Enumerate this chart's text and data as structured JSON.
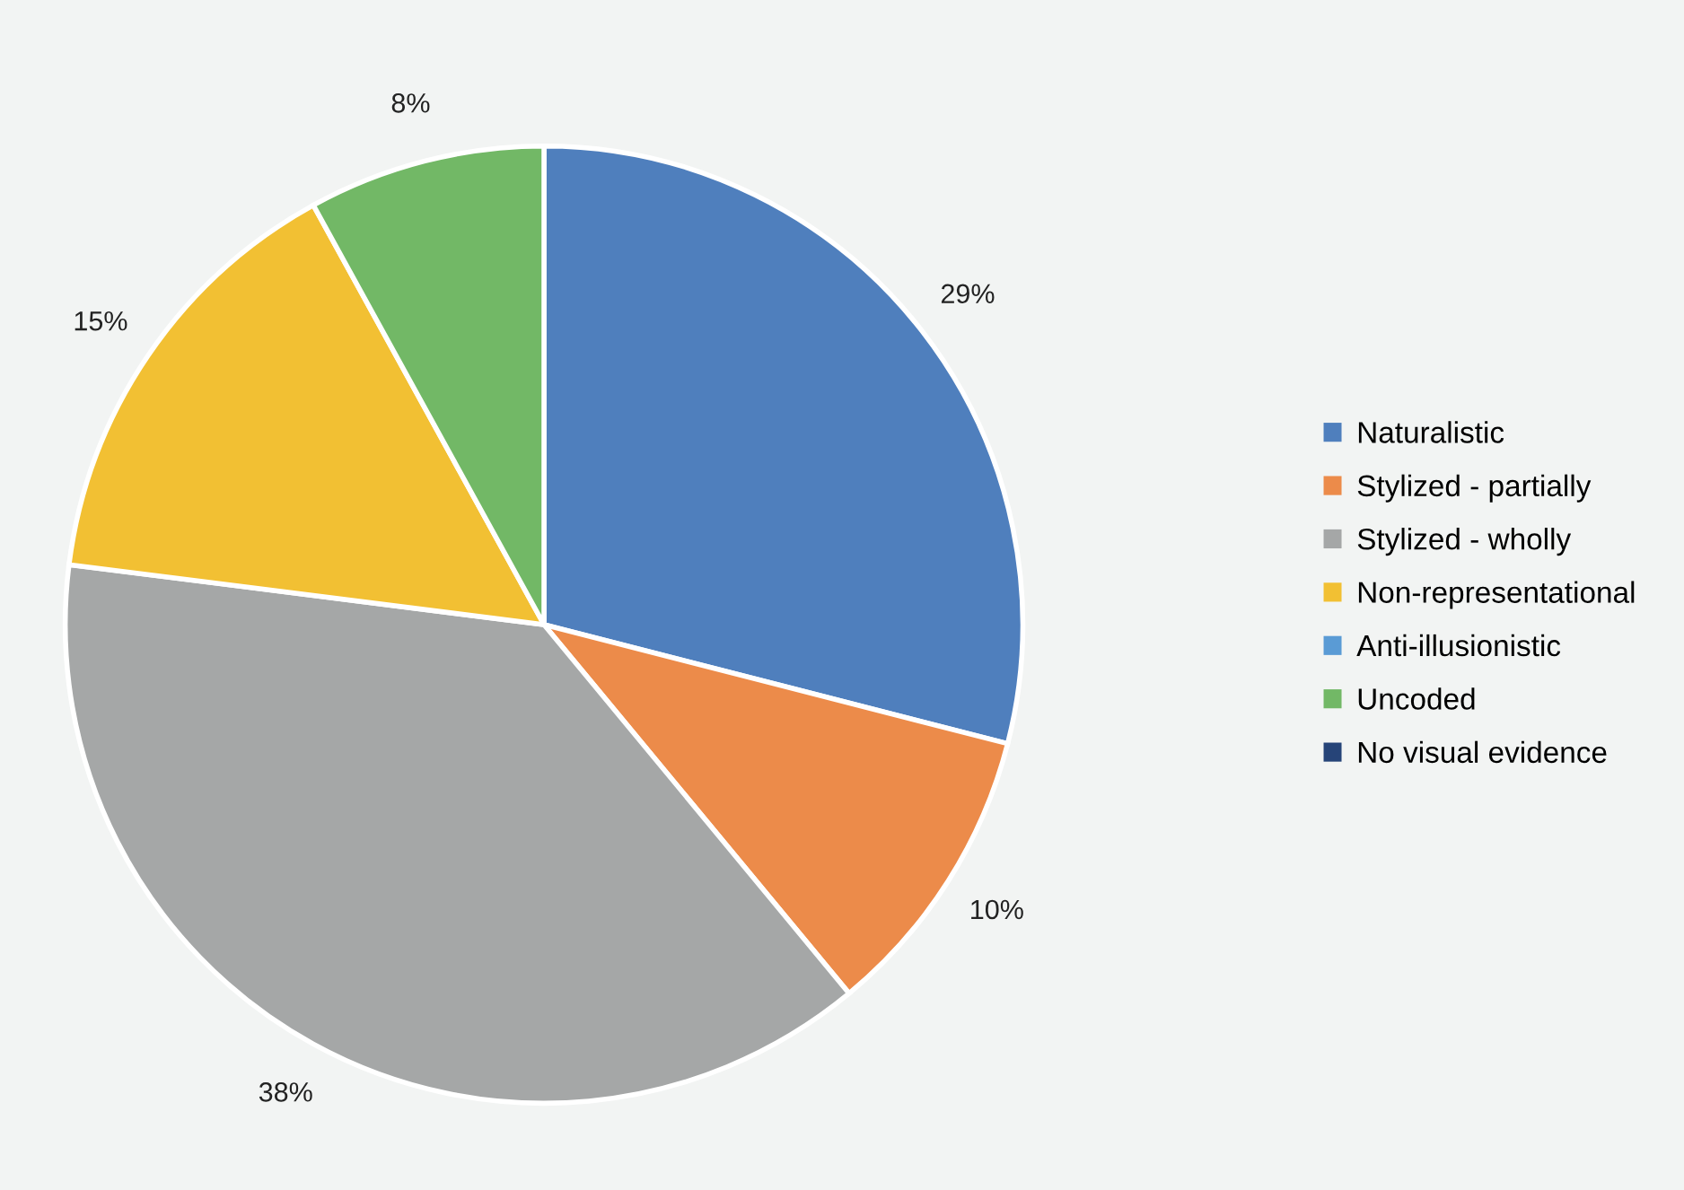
{
  "chart_data": {
    "type": "pie",
    "categories": [
      "Naturalistic",
      "Stylized - partially",
      "Stylized - wholly",
      "Non-representational",
      "Anti-illusionistic",
      "Uncoded",
      "No visual evidence"
    ],
    "values": [
      29,
      10,
      38,
      15,
      0,
      8,
      0
    ],
    "colors": [
      "#4f7fbd",
      "#ec8b4a",
      "#a5a7a7",
      "#f2c033",
      "#5a9bd5",
      "#72b866",
      "#264478"
    ],
    "value_labels": [
      "29%",
      "10%",
      "38%",
      "15%",
      null,
      "8%",
      null
    ],
    "legend": "right"
  }
}
